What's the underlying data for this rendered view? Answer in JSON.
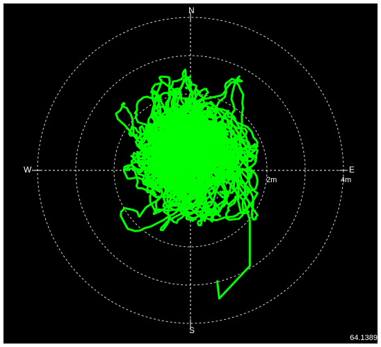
{
  "compass": {
    "north": "N",
    "south": "S",
    "east": "E",
    "west": "W"
  },
  "rings": [
    {
      "label": "2m",
      "radius_m": 2
    },
    {
      "label": "4m",
      "radius_m": 4
    }
  ],
  "readout": "64.1389",
  "colors": {
    "background": "#000000",
    "grid": "#ffffff",
    "trace": "#00ff00"
  },
  "chart_data": {
    "type": "scatter",
    "title": "",
    "xlabel": "",
    "ylabel": "",
    "xlim": [
      -4.2,
      4.2
    ],
    "ylim": [
      -4.2,
      4.2
    ],
    "grid": "polar rings every 1m, dashed crosshair",
    "series": [
      {
        "color": "#00ff00",
        "style": "dense wandering position trace",
        "cluster_center_m": [
          0,
          0.5
        ],
        "cluster_extent_m": {
          "west": -1.95,
          "east": 1.75,
          "south": -3.05,
          "north": 2.65
        },
        "tail_m": [
          [
            1.4,
            -0.8
          ],
          [
            1.55,
            -1.3
          ],
          [
            1.55,
            -2.5
          ],
          [
            0.75,
            -3.35
          ],
          [
            0.7,
            -2.9
          ]
        ]
      }
    ]
  }
}
